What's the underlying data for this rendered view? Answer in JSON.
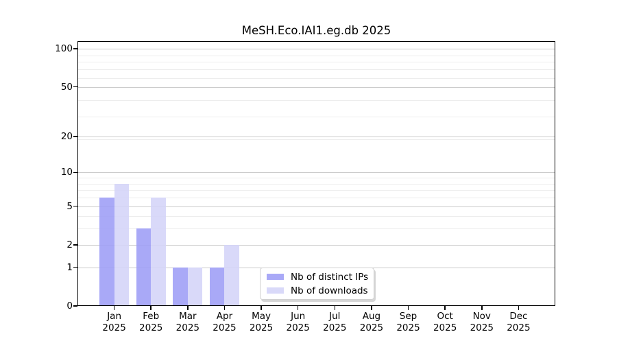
{
  "chart_data": {
    "type": "bar",
    "title": "MeSH.Eco.IAI1.eg.db 2025",
    "categories": [
      "Jan",
      "Feb",
      "Mar",
      "Apr",
      "May",
      "Jun",
      "Jul",
      "Aug",
      "Sep",
      "Oct",
      "Nov",
      "Dec"
    ],
    "x_tick_year": "2025",
    "series": [
      {
        "name": "Nb of distinct IPs",
        "color": "#9d9df6",
        "values": [
          6,
          3,
          1,
          1,
          0,
          0,
          0,
          0,
          0,
          0,
          0,
          0
        ]
      },
      {
        "name": "Nb of downloads",
        "color": "#d4d4f8",
        "values": [
          8,
          6,
          1,
          2,
          0,
          0,
          0,
          0,
          0,
          0,
          0,
          0
        ]
      }
    ],
    "y_ticks": [
      0,
      1,
      2,
      5,
      10,
      20,
      50,
      100
    ],
    "y_scale": "log10(1+v)",
    "ylim": [
      0,
      115
    ],
    "grid": true,
    "legend_position": "lower center",
    "colors": {
      "grid_major": "#cccccc",
      "grid_minor": "#ededed",
      "axis": "#000000",
      "background": "#ffffff"
    }
  }
}
